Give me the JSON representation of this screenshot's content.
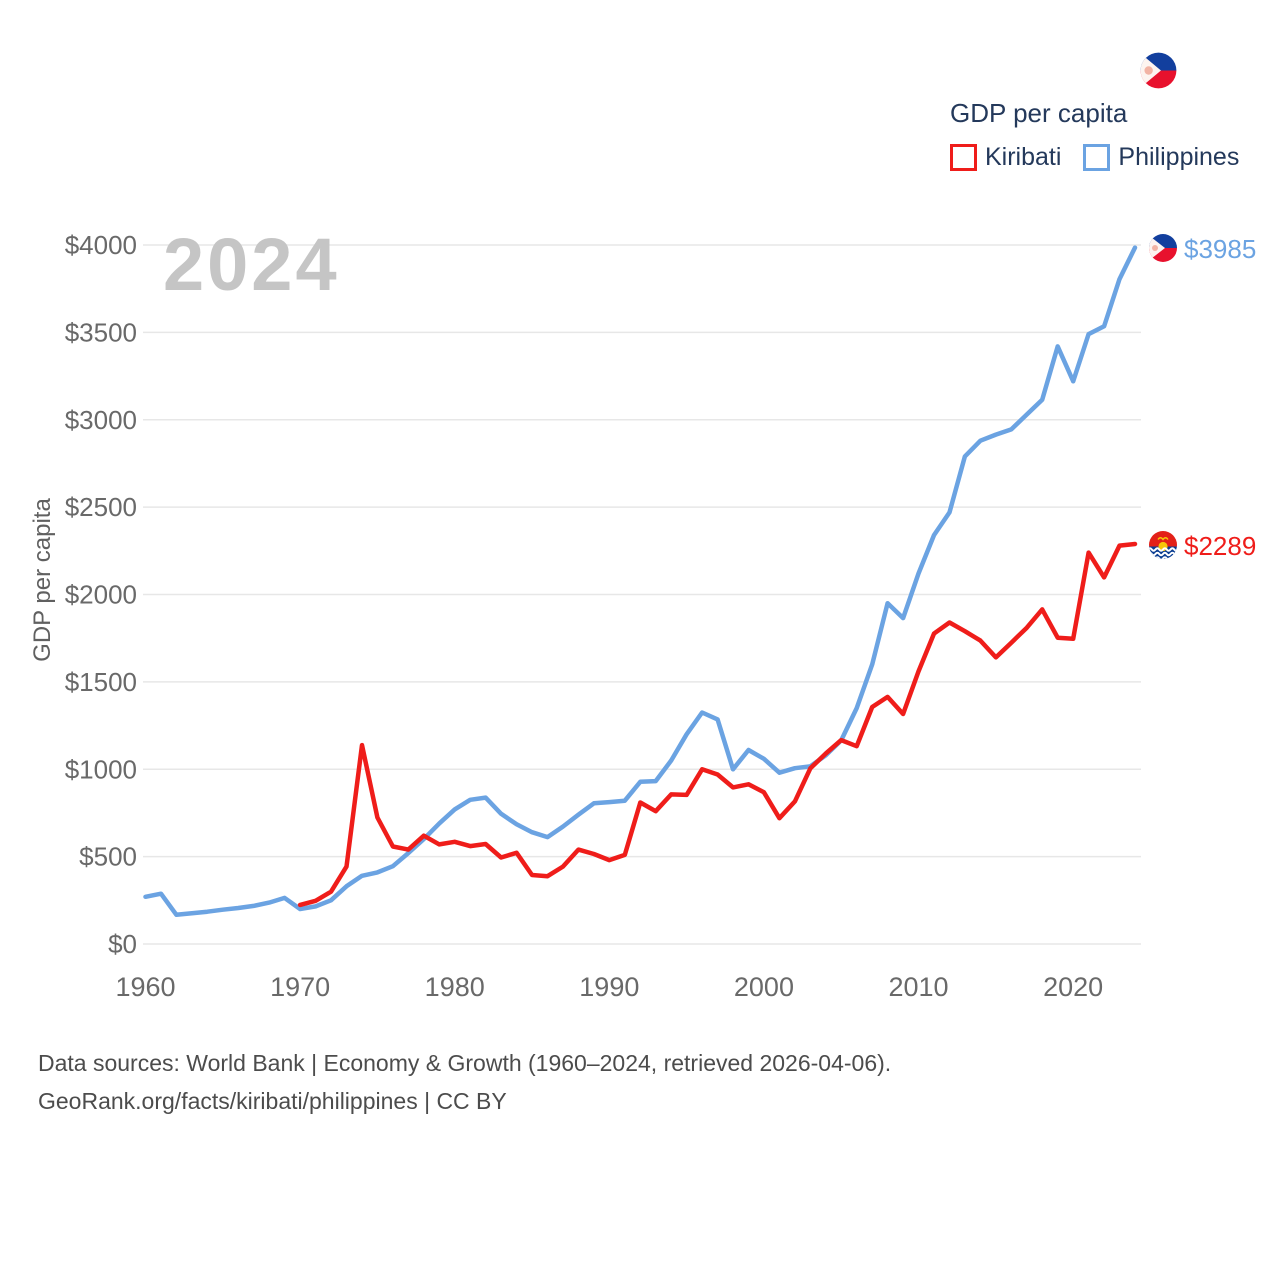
{
  "legend": {
    "title": "GDP per capita",
    "items": [
      {
        "label": "Kiribati",
        "color": "#ef1d1a"
      },
      {
        "label": "Philippines",
        "color": "#6ba3e2"
      }
    ]
  },
  "watermark": "2024",
  "y_axis_title": "GDP per capita",
  "end_labels": {
    "philippines": {
      "text": "$3985",
      "color": "#6ba3e2"
    },
    "kiribati": {
      "text": "$2289",
      "color": "#ef1d1a"
    }
  },
  "footer": {
    "line1": "Data sources: World Bank | Economy & Growth (1960–2024, retrieved 2026-04-06).",
    "line2": "GeoRank.org/facts/kiribati/philippines | CC BY"
  },
  "chart_data": {
    "type": "line",
    "title": "GDP per capita",
    "xlabel": "",
    "ylabel": "GDP per capita",
    "ylim": [
      0,
      4000
    ],
    "grid": "horizontal",
    "legend_position": "top-right",
    "x": [
      1960,
      1961,
      1962,
      1963,
      1964,
      1965,
      1966,
      1967,
      1968,
      1969,
      1970,
      1971,
      1972,
      1973,
      1974,
      1975,
      1976,
      1977,
      1978,
      1979,
      1980,
      1981,
      1982,
      1983,
      1984,
      1985,
      1986,
      1987,
      1988,
      1989,
      1990,
      1991,
      1992,
      1993,
      1994,
      1995,
      1996,
      1997,
      1998,
      1999,
      2000,
      2001,
      2002,
      2003,
      2004,
      2005,
      2006,
      2007,
      2008,
      2009,
      2010,
      2011,
      2012,
      2013,
      2014,
      2015,
      2016,
      2017,
      2018,
      2019,
      2020,
      2021,
      2022,
      2023,
      2024
    ],
    "x_tick_values": [
      1960,
      1970,
      1980,
      1990,
      2000,
      2010,
      2020
    ],
    "y_tick_values": [
      0,
      500,
      1000,
      1500,
      2000,
      2500,
      3000,
      3500,
      4000
    ],
    "y_tick_labels": [
      "$0",
      "$500",
      "$1000",
      "$1500",
      "$2000",
      "$2500",
      "$3000",
      "$3500",
      "$4000"
    ],
    "series": [
      {
        "name": "Philippines",
        "color": "#6ba3e2",
        "values": [
          270,
          288,
          167,
          176,
          185,
          196,
          206,
          218,
          237,
          264,
          200,
          215,
          250,
          330,
          390,
          410,
          445,
          520,
          600,
          690,
          770,
          825,
          838,
          745,
          685,
          640,
          612,
          672,
          740,
          805,
          812,
          820,
          928,
          932,
          1050,
          1200,
          1325,
          1285,
          1000,
          1110,
          1060,
          980,
          1006,
          1017,
          1080,
          1165,
          1350,
          1600,
          1950,
          1865,
          2120,
          2340,
          2470,
          2790,
          2880,
          2915,
          2945,
          3030,
          3115,
          3420,
          3220,
          3490,
          3535,
          3805,
          3985
        ]
      },
      {
        "name": "Kiribati",
        "color": "#ef1d1a",
        "values": [
          null,
          null,
          null,
          null,
          null,
          null,
          null,
          null,
          null,
          null,
          224,
          247,
          299,
          443,
          1138,
          724,
          558,
          540,
          620,
          570,
          585,
          560,
          572,
          495,
          522,
          395,
          388,
          443,
          540,
          515,
          480,
          510,
          810,
          760,
          856,
          853,
          1000,
          970,
          896,
          914,
          868,
          720,
          816,
          1005,
          1090,
          1167,
          1132,
          1356,
          1414,
          1316,
          1560,
          1776,
          1840,
          1790,
          1736,
          1640,
          1724,
          1810,
          1915,
          1753,
          1747,
          2240,
          2098,
          2280,
          2289
        ]
      }
    ]
  }
}
